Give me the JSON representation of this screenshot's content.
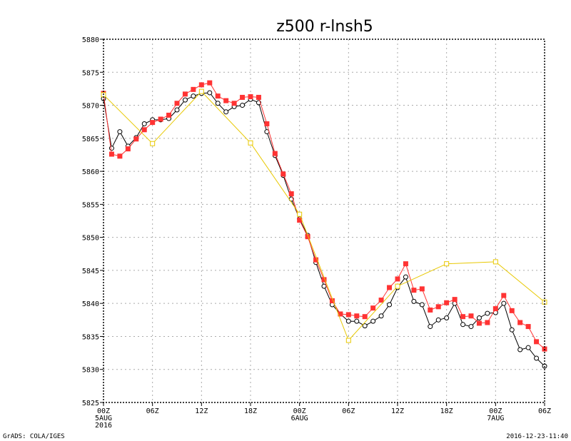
{
  "footer": {
    "left": "GrADS: COLA/IGES",
    "right": "2016-12-23-11:40"
  },
  "chart_data": {
    "type": "line",
    "title": "z500 r-lnsh5",
    "ylim": [
      5825,
      5880
    ],
    "yticks": [
      5825,
      5830,
      5835,
      5840,
      5845,
      5850,
      5855,
      5860,
      5865,
      5870,
      5875,
      5880
    ],
    "xlim": [
      0,
      54
    ],
    "xticks": [
      {
        "x": 0,
        "lines": [
          "00Z",
          "5AUG",
          "2016"
        ]
      },
      {
        "x": 6,
        "lines": [
          "06Z"
        ]
      },
      {
        "x": 12,
        "lines": [
          "12Z"
        ]
      },
      {
        "x": 18,
        "lines": [
          "18Z"
        ]
      },
      {
        "x": 24,
        "lines": [
          "00Z",
          "6AUG"
        ]
      },
      {
        "x": 30,
        "lines": [
          "06Z"
        ]
      },
      {
        "x": 36,
        "lines": [
          "12Z"
        ]
      },
      {
        "x": 42,
        "lines": [
          "18Z"
        ]
      },
      {
        "x": 48,
        "lines": [
          "00Z",
          "7AUG"
        ]
      },
      {
        "x": 54,
        "lines": [
          "06Z"
        ]
      }
    ],
    "grid": true,
    "series": [
      {
        "color": "#000000",
        "marker": "open-circle",
        "x": [
          0,
          1,
          2,
          3,
          4,
          5,
          6,
          7,
          8,
          9,
          10,
          11,
          12,
          13,
          14,
          15,
          16,
          17,
          18,
          19,
          20,
          21,
          22,
          23,
          24,
          25,
          26,
          27,
          28,
          29,
          30,
          31,
          32,
          33,
          34,
          35,
          36,
          37,
          38,
          39,
          40,
          41,
          42,
          43,
          44,
          45,
          46,
          47,
          48,
          49,
          50,
          51,
          52,
          53,
          54
        ],
        "values": [
          5871,
          5863.5,
          5866,
          5863.8,
          5865.1,
          5867.2,
          5867.8,
          5867.8,
          5868,
          5869.3,
          5870.8,
          5871.4,
          5871.8,
          5871.9,
          5870.3,
          5869,
          5869.8,
          5870,
          5870.9,
          5870.4,
          5866,
          5862.4,
          5859.4,
          5855.8,
          5852.8,
          5850.3,
          5846.2,
          5842.6,
          5839.8,
          5838.4,
          5837.3,
          5837.3,
          5836.6,
          5837.3,
          5838.1,
          5839.8,
          5842.4,
          5844,
          5840.3,
          5839.8,
          5836.5,
          5837.5,
          5837.8,
          5840,
          5836.8,
          5836.5,
          5837.8,
          5838.5,
          5838.6,
          5840,
          5836,
          5833,
          5833.3,
          5831.7,
          5830.5
        ]
      },
      {
        "color": "#ff3333",
        "marker": "filled-square",
        "x": [
          0,
          1,
          2,
          3,
          4,
          5,
          6,
          7,
          8,
          9,
          10,
          11,
          12,
          13,
          14,
          15,
          16,
          17,
          18,
          19,
          20,
          21,
          22,
          23,
          24,
          25,
          26,
          27,
          28,
          29,
          30,
          31,
          32,
          33,
          34,
          35,
          36,
          37,
          38,
          39,
          40,
          41,
          42,
          43,
          44,
          45,
          46,
          47,
          48,
          49,
          50,
          51,
          52,
          53,
          54
        ],
        "values": [
          5871.8,
          5862.6,
          5862.3,
          5863.4,
          5864.9,
          5866.3,
          5867.4,
          5867.9,
          5868.5,
          5870.3,
          5871.7,
          5872.4,
          5873.1,
          5873.4,
          5871.4,
          5870.7,
          5870.3,
          5871.2,
          5871.3,
          5871.2,
          5867.2,
          5862.7,
          5859.6,
          5856.6,
          5852.6,
          5850.1,
          5846.6,
          5843.6,
          5840.4,
          5838.4,
          5838.3,
          5838.1,
          5838,
          5839.3,
          5840.5,
          5842.4,
          5843.7,
          5846,
          5842,
          5842.2,
          5839,
          5839.5,
          5840.1,
          5840.6,
          5838,
          5838.1,
          5837,
          5837.1,
          5839.2,
          5841.2,
          5838.9,
          5837.1,
          5836.5,
          5834.2,
          5833.1
        ]
      },
      {
        "color": "#e8c800",
        "marker": "open-square",
        "x": [
          0,
          6,
          12,
          18,
          24,
          30,
          36,
          42,
          48,
          54
        ],
        "values": [
          5871.6,
          5864.2,
          5872.1,
          5864.3,
          5853.5,
          5834.4,
          5842.6,
          5846,
          5846.3,
          5840.2
        ]
      }
    ]
  }
}
